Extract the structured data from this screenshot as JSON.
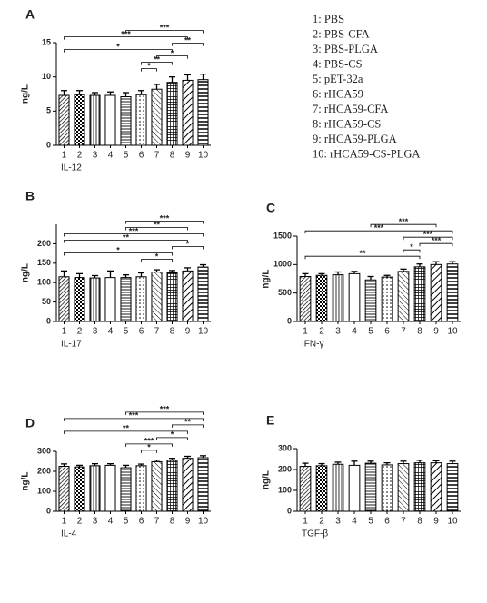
{
  "legend": [
    "1: PBS",
    "2: PBS-CFA",
    "3: PBS-PLGA",
    "4: PBS-CS",
    "5: pET-32a",
    "6: rHCA59",
    "7: rHCA59-CFA",
    "8: rHCA59-CS",
    "9: rHCA59-PLGA",
    "10: rHCA59-CS-PLGA"
  ],
  "chart_data": [
    {
      "type": "bar",
      "panel": "A",
      "ylabel": "ng/L",
      "xlabel": "IL-12",
      "categories": [
        "1",
        "2",
        "3",
        "4",
        "5",
        "6",
        "7",
        "8",
        "9",
        "10"
      ],
      "values": [
        7.3,
        7.4,
        7.3,
        7.3,
        7.1,
        7.4,
        8.2,
        9.2,
        9.5,
        9.6
      ],
      "errors": [
        0.7,
        0.6,
        0.4,
        0.5,
        0.6,
        0.6,
        0.7,
        0.8,
        0.8,
        0.8
      ],
      "ylim": [
        0,
        15
      ],
      "yticks": [
        0,
        5,
        10,
        15
      ],
      "annotations": [
        {
          "text": "***",
          "from": "5",
          "to": "10"
        },
        {
          "text": "***",
          "from": "1",
          "to": "9"
        },
        {
          "text": "**",
          "from": "8",
          "to": "10"
        },
        {
          "text": "*",
          "from": "1",
          "to": "8"
        },
        {
          "text": "*",
          "from": "7",
          "to": "9"
        },
        {
          "text": "**",
          "from": "6",
          "to": "8"
        },
        {
          "text": "*",
          "from": "6",
          "to": "7"
        }
      ]
    },
    {
      "type": "bar",
      "panel": "B",
      "ylabel": "ng/L",
      "xlabel": "IL-17",
      "categories": [
        "1",
        "2",
        "3",
        "4",
        "5",
        "6",
        "7",
        "8",
        "9",
        "10"
      ],
      "values": [
        115,
        113,
        112,
        113,
        113,
        115,
        127,
        125,
        130,
        140
      ],
      "errors": [
        15,
        10,
        6,
        17,
        7,
        10,
        6,
        6,
        8,
        6
      ],
      "ylim": [
        0,
        250
      ],
      "yticks": [
        0,
        50,
        100,
        150,
        200
      ],
      "annotations": [
        {
          "text": "***",
          "from": "5",
          "to": "10"
        },
        {
          "text": "**",
          "from": "5",
          "to": "9"
        },
        {
          "text": "***",
          "from": "1",
          "to": "10"
        },
        {
          "text": "**",
          "from": "1",
          "to": "9"
        },
        {
          "text": "*",
          "from": "8",
          "to": "10"
        },
        {
          "text": "*",
          "from": "1",
          "to": "8"
        },
        {
          "text": "*",
          "from": "6",
          "to": "8"
        }
      ]
    },
    {
      "type": "bar",
      "panel": "C",
      "ylabel": "ng/L",
      "xlabel": "IFN-γ",
      "categories": [
        "1",
        "2",
        "3",
        "4",
        "5",
        "6",
        "7",
        "8",
        "9",
        "10"
      ],
      "values": [
        790,
        810,
        820,
        840,
        730,
        780,
        880,
        960,
        1000,
        1010
      ],
      "errors": [
        50,
        30,
        50,
        40,
        60,
        30,
        40,
        50,
        50,
        40
      ],
      "ylim": [
        0,
        1500
      ],
      "yticks": [
        0,
        500,
        1000,
        1500
      ],
      "annotations": [
        {
          "text": "***",
          "from": "5",
          "to": "9"
        },
        {
          "text": "***",
          "from": "1",
          "to": "10"
        },
        {
          "text": "***",
          "from": "7",
          "to": "10"
        },
        {
          "text": "***",
          "from": "8",
          "to": "10"
        },
        {
          "text": "*",
          "from": "7",
          "to": "8"
        },
        {
          "text": "**",
          "from": "1",
          "to": "8"
        }
      ]
    },
    {
      "type": "bar",
      "panel": "D",
      "ylabel": "ng/L",
      "xlabel": "IL-4",
      "categories": [
        "1",
        "2",
        "3",
        "4",
        "5",
        "6",
        "7",
        "8",
        "9",
        "10"
      ],
      "values": [
        225,
        222,
        228,
        230,
        218,
        228,
        248,
        255,
        265,
        268
      ],
      "errors": [
        12,
        8,
        10,
        8,
        12,
        8,
        8,
        10,
        10,
        10
      ],
      "ylim": [
        0,
        300
      ],
      "yticks": [
        0,
        100,
        200,
        300
      ],
      "annotations": [
        {
          "text": "***",
          "from": "5",
          "to": "10"
        },
        {
          "text": "***",
          "from": "1",
          "to": "10"
        },
        {
          "text": "**",
          "from": "8",
          "to": "10"
        },
        {
          "text": "**",
          "from": "1",
          "to": "9"
        },
        {
          "text": "*",
          "from": "7",
          "to": "9"
        },
        {
          "text": "***",
          "from": "5",
          "to": "8"
        },
        {
          "text": "*",
          "from": "6",
          "to": "7"
        }
      ]
    },
    {
      "type": "bar",
      "panel": "E",
      "ylabel": "ng/L",
      "xlabel": "TGF-β",
      "categories": [
        "1",
        "2",
        "3",
        "4",
        "5",
        "6",
        "7",
        "8",
        "9",
        "10"
      ],
      "values": [
        215,
        218,
        225,
        220,
        230,
        222,
        228,
        232,
        232,
        228
      ],
      "errors": [
        15,
        10,
        10,
        20,
        10,
        10,
        12,
        12,
        10,
        12
      ],
      "ylim": [
        0,
        300
      ],
      "yticks": [
        0,
        100,
        200,
        300
      ]
    }
  ]
}
